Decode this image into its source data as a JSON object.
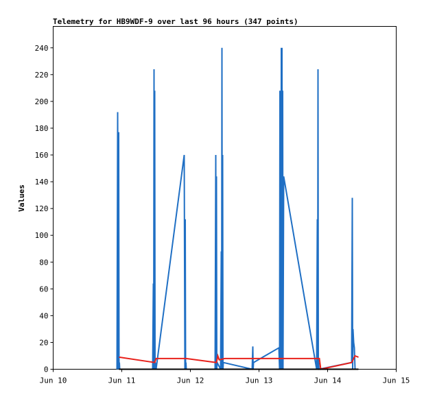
{
  "chart_data": {
    "type": "line",
    "title": "Telemetry for HB9WDF-9 over last 96 hours (347 points)",
    "xlabel": "",
    "ylabel": "Values",
    "x_tick_labels": [
      "Jun 10",
      "Jun 11",
      "Jun 12",
      "Jun 13",
      "Jun 14",
      "Jun 15"
    ],
    "xlim": [
      10.0,
      15.0
    ],
    "y_ticks": [
      0,
      20,
      40,
      60,
      80,
      100,
      120,
      140,
      160,
      180,
      200,
      220,
      240
    ],
    "ylim": [
      0,
      256
    ],
    "grid": false,
    "legend": "none",
    "series": [
      {
        "color": "#1f6fc4",
        "x": [
          10.93,
          10.94,
          10.95,
          10.955,
          10.96,
          10.965,
          10.97,
          11.45,
          11.46,
          11.465,
          11.47,
          11.475,
          11.48,
          11.485,
          11.49,
          11.5,
          11.91,
          11.92,
          11.925,
          11.93,
          11.935,
          11.94,
          12.36,
          12.37,
          12.375,
          12.38,
          12.385,
          12.39,
          12.44,
          12.45,
          12.455,
          12.46,
          12.465,
          12.47,
          12.475,
          12.48,
          12.9,
          12.91,
          12.915,
          12.92,
          13.29,
          13.3,
          13.305,
          13.31,
          13.315,
          13.32,
          13.325,
          13.33,
          13.335,
          13.34,
          13.345,
          13.35,
          13.36,
          13.84,
          13.85,
          13.855,
          13.86,
          13.865,
          13.87,
          13.875,
          14.35,
          14.36,
          14.365,
          14.37,
          14.38,
          14.39,
          14.4,
          14.41,
          14.42
        ],
        "y": [
          0,
          192,
          0,
          177,
          0,
          5,
          0,
          0,
          64,
          0,
          224,
          0,
          208,
          0,
          5,
          0,
          160,
          0,
          112,
          0,
          5,
          0,
          0,
          160,
          0,
          144,
          0,
          5,
          0,
          88,
          0,
          240,
          0,
          160,
          0,
          5,
          0,
          17,
          0,
          5,
          16,
          0,
          208,
          0,
          128,
          0,
          240,
          0,
          240,
          0,
          208,
          0,
          144,
          0,
          112,
          0,
          224,
          0,
          5,
          0,
          5,
          128,
          0,
          30,
          20,
          16,
          0,
          0,
          0
        ]
      },
      {
        "color": "#e8201a",
        "x": [
          10.96,
          11.48,
          11.5,
          11.94,
          12.38,
          12.4,
          12.42,
          12.5,
          12.92,
          13.88,
          13.9,
          14.35,
          14.4,
          14.45
        ],
        "y": [
          9,
          5,
          8,
          8,
          5,
          10,
          7,
          8,
          8,
          8,
          0,
          5,
          10,
          9
        ]
      },
      {
        "color": "#000000",
        "x": [
          10.96,
          14.45
        ],
        "y": [
          0,
          0
        ]
      }
    ]
  }
}
